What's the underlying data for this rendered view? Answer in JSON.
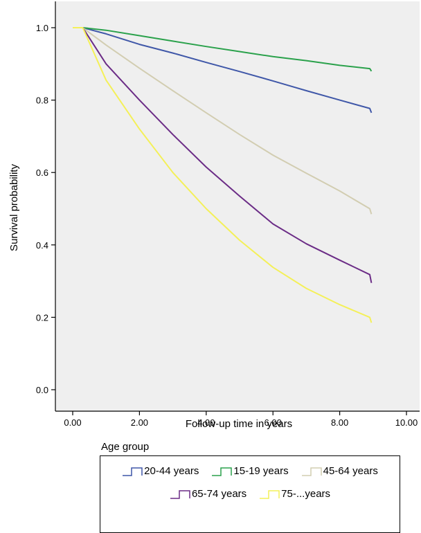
{
  "chart_data": {
    "type": "line",
    "xlabel": "Follow-up time in years",
    "ylabel": "Survival probability",
    "xlim": [
      0,
      10
    ],
    "ylim": [
      0,
      1
    ],
    "x_ticks": [
      "0.00",
      "2.00",
      "4.00",
      "6.00",
      "8.00",
      "10.00"
    ],
    "y_ticks": [
      "0.0",
      "0.2",
      "0.4",
      "0.6",
      "0.8",
      "1.0"
    ],
    "grid": false,
    "background": "#efefef",
    "legend_title": "Age group",
    "legend_position": "bottom",
    "series": [
      {
        "name": "20-44 years",
        "color": "#3f57a8",
        "x": [
          0,
          0.3,
          1,
          2,
          3,
          4,
          5,
          6,
          7,
          8,
          8.9,
          8.95
        ],
        "y": [
          1.0,
          1.0,
          0.983,
          0.954,
          0.93,
          0.904,
          0.879,
          0.853,
          0.826,
          0.8,
          0.777,
          0.765
        ]
      },
      {
        "name": "15-19 years",
        "color": "#2aa14b",
        "x": [
          0,
          0.3,
          1,
          2,
          3,
          4,
          5,
          6,
          7,
          8,
          8.9,
          8.95
        ],
        "y": [
          1.0,
          1.0,
          0.993,
          0.978,
          0.963,
          0.948,
          0.934,
          0.92,
          0.909,
          0.896,
          0.887,
          0.88
        ]
      },
      {
        "name": "45-64 years",
        "color": "#d2cdb1",
        "x": [
          0,
          0.3,
          1,
          2,
          3,
          4,
          5,
          6,
          7,
          8,
          8.9,
          8.95
        ],
        "y": [
          1.0,
          1.0,
          0.952,
          0.888,
          0.826,
          0.765,
          0.705,
          0.648,
          0.598,
          0.549,
          0.5,
          0.485
        ]
      },
      {
        "name": "65-74 years",
        "color": "#6b2c86",
        "x": [
          0,
          0.3,
          1,
          2,
          3,
          4,
          5,
          6,
          7,
          8,
          8.9,
          8.95
        ],
        "y": [
          1.0,
          1.0,
          0.9,
          0.8,
          0.705,
          0.615,
          0.535,
          0.458,
          0.403,
          0.358,
          0.318,
          0.295
        ]
      },
      {
        "name": "75-...years",
        "color": "#f4f058",
        "x": [
          0,
          0.3,
          1,
          2,
          3,
          4,
          5,
          6,
          7,
          8,
          8.9,
          8.95
        ],
        "y": [
          1.0,
          1.0,
          0.855,
          0.72,
          0.6,
          0.5,
          0.413,
          0.338,
          0.28,
          0.235,
          0.2,
          0.185
        ]
      }
    ]
  }
}
